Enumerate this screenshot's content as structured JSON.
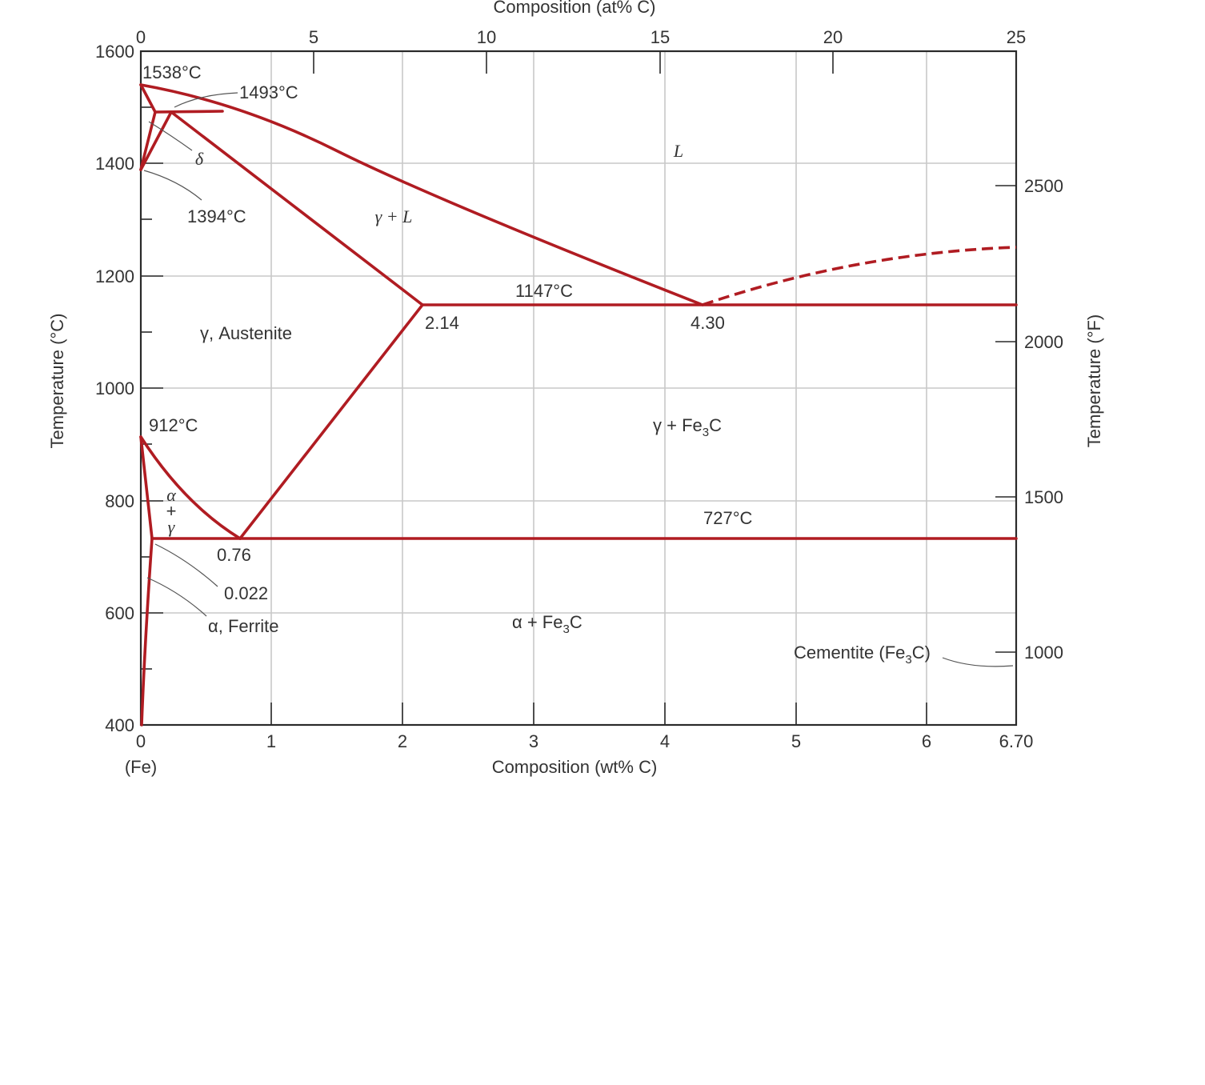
{
  "chart_data": {
    "type": "phase-diagram",
    "title": "",
    "x_bottom": {
      "label": "Composition (wt% C)",
      "range": [
        0,
        6.7
      ],
      "ticks": [
        "0",
        "1",
        "2",
        "3",
        "4",
        "5",
        "6",
        "6.70"
      ],
      "sub_label": "(Fe)"
    },
    "x_top": {
      "label": "Composition (at% C)",
      "range": [
        0,
        25
      ],
      "ticks": [
        "0",
        "5",
        "10",
        "15",
        "20",
        "25"
      ]
    },
    "y_left": {
      "label": "Temperature (°C)",
      "range": [
        400,
        1600
      ],
      "ticks": [
        "400",
        "600",
        "800",
        "1000",
        "1200",
        "1400",
        "1600"
      ]
    },
    "y_right": {
      "label": "Temperature (°F)",
      "ticks": [
        "1000",
        "1500",
        "2000",
        "2500"
      ]
    },
    "grid": true,
    "line_color": "#b01c22",
    "phase_labels": {
      "liquid": "L",
      "gamma_liquid": "γ + L",
      "austenite": "γ, Austenite",
      "delta": "δ",
      "alpha_gamma_a": "α",
      "alpha_gamma_plus": "+",
      "alpha_gamma_g": "γ",
      "ferrite": "α, Ferrite",
      "gamma_fe3c": "γ + Fe",
      "alpha_fe3c": "α + Fe",
      "cementite": "Cementite (Fe",
      "fe3c_sub": "3",
      "fe3c_tail": "C",
      "cementite_tail": "C)"
    },
    "annotations": {
      "t1538": "1538°C",
      "t1493": "1493°C",
      "t1394": "1394°C",
      "t1147": "1147°C",
      "t912": "912°C",
      "t727": "727°C",
      "c214": "2.14",
      "c430": "4.30",
      "c076": "0.76",
      "c0022": "0.022"
    },
    "key_points": [
      {
        "name": "Fe melting",
        "wt": 0,
        "T": 1538
      },
      {
        "name": "peritectic",
        "wt": 0.17,
        "T": 1493
      },
      {
        "name": "delta-gamma",
        "wt": 0,
        "T": 1394
      },
      {
        "name": "max gamma solubility",
        "wt": 2.14,
        "T": 1147
      },
      {
        "name": "eutectic",
        "wt": 4.3,
        "T": 1147
      },
      {
        "name": "alpha-gamma",
        "wt": 0,
        "T": 912
      },
      {
        "name": "eutectoid",
        "wt": 0.76,
        "T": 727
      },
      {
        "name": "max alpha solubility",
        "wt": 0.022,
        "T": 727
      }
    ]
  }
}
